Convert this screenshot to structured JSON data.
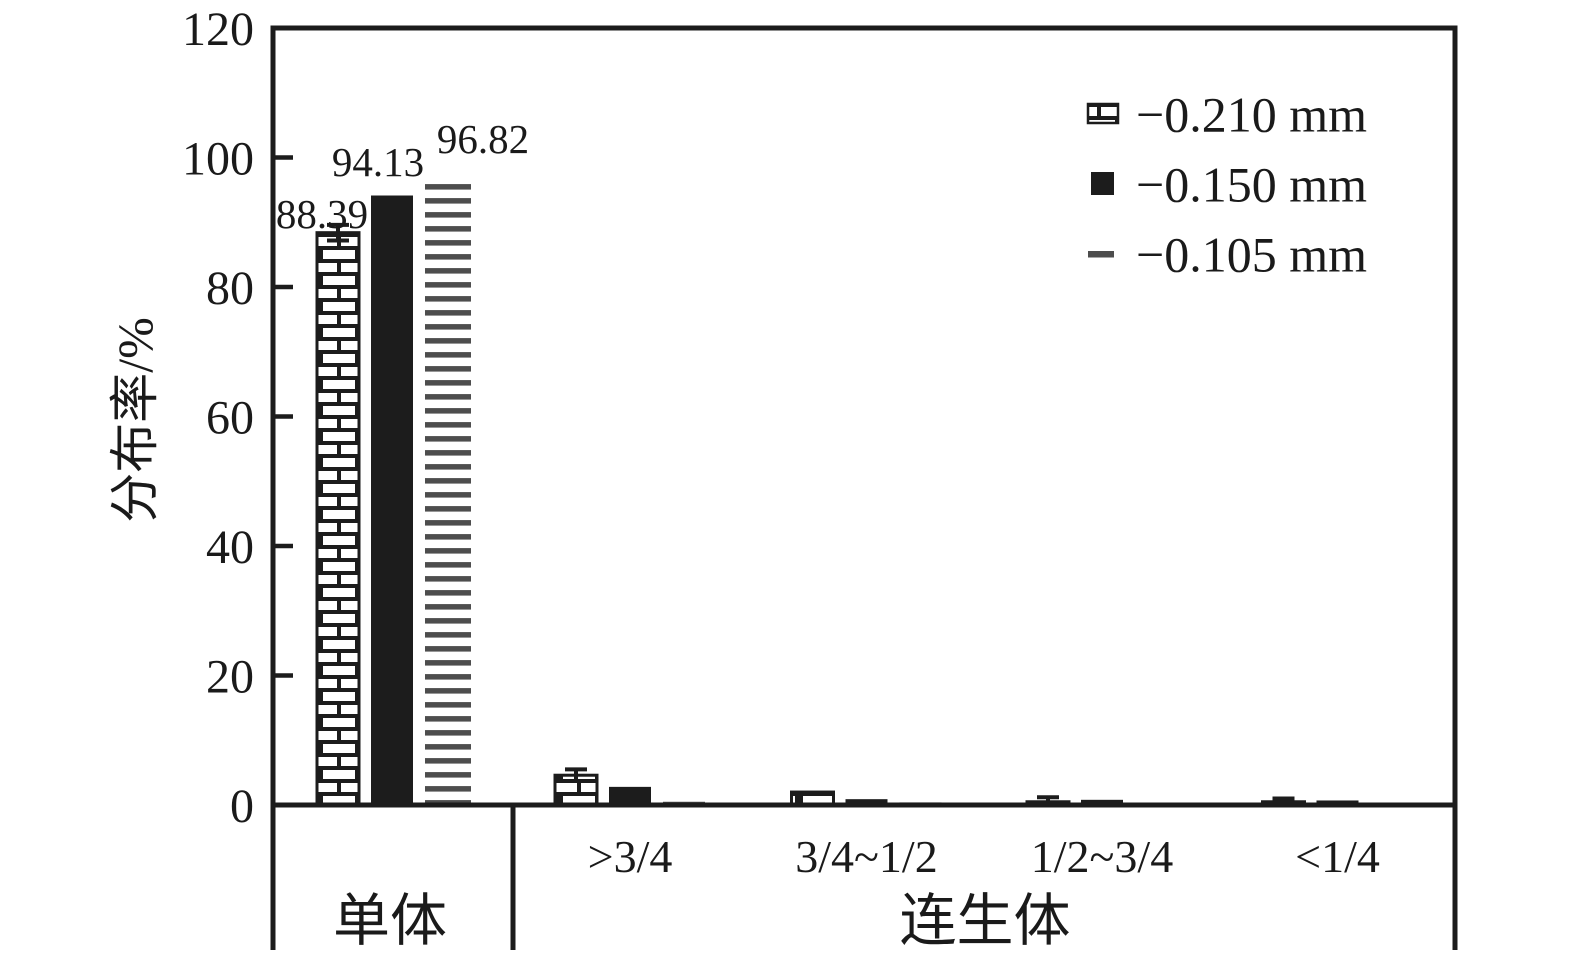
{
  "chart_data": {
    "type": "bar",
    "title": "",
    "ylabel": "分布率/%",
    "ylim": [
      0,
      120
    ],
    "yticks": [
      0,
      20,
      40,
      60,
      80,
      100,
      120
    ],
    "ytick_labels": [
      "0",
      "20",
      "40",
      "60",
      "80",
      "100",
      "120"
    ],
    "grid": false,
    "legend_position": "top-right",
    "categories": [
      "单体",
      ">3/4",
      "3/4~1/2",
      "1/2~3/4",
      "<1/4"
    ],
    "group_labels": {
      "monomer": "单体",
      "intergrowth": "连生体"
    },
    "intergrowth_categories": [
      ">3/4",
      "3/4~1/2",
      "1/2~3/4",
      "<1/4"
    ],
    "series": [
      {
        "name": "−0.210 mm",
        "style": "brick-hatch",
        "values": [
          88.39,
          4.6,
          2.0,
          0.5,
          0.5
        ],
        "errors": [
          1.2,
          0.9,
          0,
          0.7,
          0.5
        ]
      },
      {
        "name": "−0.150 mm",
        "style": "solid-black",
        "values": [
          94.13,
          2.8,
          0.9,
          0.8,
          0.7
        ],
        "errors": [
          0,
          0,
          0,
          0,
          0
        ]
      },
      {
        "name": "−0.105 mm",
        "style": "horizontal-lines",
        "values": [
          96.82,
          0.5,
          0.4,
          0.3,
          0.15
        ],
        "errors": [
          0,
          0,
          0,
          0,
          0
        ]
      }
    ],
    "value_labels": [
      "88.39",
      "94.13",
      "96.82"
    ],
    "colors": {
      "ink": "#1c1c1c",
      "gray_line": "#4d4d4d",
      "background": "#ffffff"
    }
  }
}
